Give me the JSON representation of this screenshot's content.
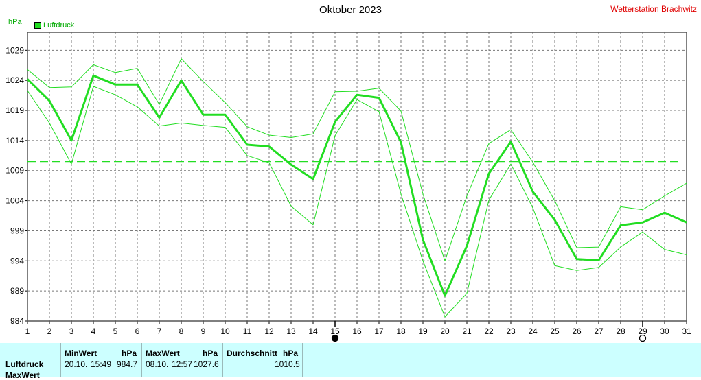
{
  "title": "Oktober 2023",
  "station": "Wetterstation Brachwitz",
  "unit": "hPa",
  "legend": {
    "label": "Luftdruck",
    "color": "#22dd22"
  },
  "chart_data": {
    "type": "line",
    "title": "Oktober 2023",
    "ylabel": "hPa",
    "xlabel": "",
    "ylim": [
      984,
      1032
    ],
    "xlim": [
      1,
      31
    ],
    "yticks": [
      984,
      989,
      994,
      999,
      1004,
      1009,
      1014,
      1019,
      1024,
      1029
    ],
    "x": [
      1,
      2,
      3,
      4,
      5,
      6,
      7,
      8,
      9,
      10,
      11,
      12,
      13,
      14,
      15,
      16,
      17,
      18,
      19,
      20,
      21,
      22,
      23,
      24,
      25,
      26,
      27,
      28,
      29,
      30,
      31
    ],
    "grid": true,
    "average": 1010.5,
    "moon_markers": [
      {
        "day": 15,
        "phase": "new"
      },
      {
        "day": 29,
        "phase": "full"
      }
    ],
    "series": [
      {
        "name": "Luftdruck",
        "role": "mean",
        "values": [
          1024.2,
          1020.6,
          1014.0,
          1024.8,
          1023.3,
          1023.3,
          1017.8,
          1024.0,
          1018.3,
          1018.3,
          1013.3,
          1013.0,
          1010.0,
          1007.6,
          1017.1,
          1021.6,
          1021.1,
          1013.7,
          997.5,
          988.2,
          996.5,
          1008.5,
          1013.8,
          1005.5,
          1000.8,
          994.3,
          994.1,
          999.9,
          1000.4,
          1002.0,
          1000.4
        ]
      },
      {
        "name": "",
        "role": "max",
        "values": [
          1025.8,
          1022.8,
          1022.9,
          1026.6,
          1025.3,
          1026.0,
          1020.0,
          1027.6,
          1023.8,
          1020.3,
          1016.3,
          1014.9,
          1014.5,
          1015.1,
          1022.1,
          1022.2,
          1022.7,
          1018.9,
          1005.1,
          994.0,
          1004.8,
          1013.5,
          1015.8,
          1010.4,
          1004.0,
          996.2,
          996.3,
          1003.0,
          1002.5,
          1004.8,
          1006.9
        ]
      },
      {
        "name": "",
        "role": "min",
        "values": [
          1022.3,
          1016.9,
          1010.1,
          1023.0,
          1021.6,
          1019.6,
          1016.4,
          1016.9,
          1016.5,
          1016.2,
          1011.5,
          1010.3,
          1003.1,
          1000.0,
          1014.8,
          1020.8,
          1018.8,
          1005.1,
          994.0,
          984.7,
          988.6,
          1004.1,
          1010.1,
          1002.8,
          993.2,
          992.4,
          992.9,
          996.3,
          998.8,
          995.9,
          995.0
        ]
      }
    ]
  },
  "stats": {
    "row_labels": [
      "Luftdruck",
      "MaxWert"
    ],
    "min": {
      "header": "MinWert",
      "unit": "hPa",
      "date": "20.10.",
      "time": "15:49",
      "value": "984.7"
    },
    "max": {
      "header": "MaxWert",
      "unit": "hPa",
      "date": "08.10.",
      "time": "12:57",
      "value": "1027.6"
    },
    "avg": {
      "header": "Durchschnitt",
      "unit": "hPa",
      "value": "1010.5"
    }
  }
}
